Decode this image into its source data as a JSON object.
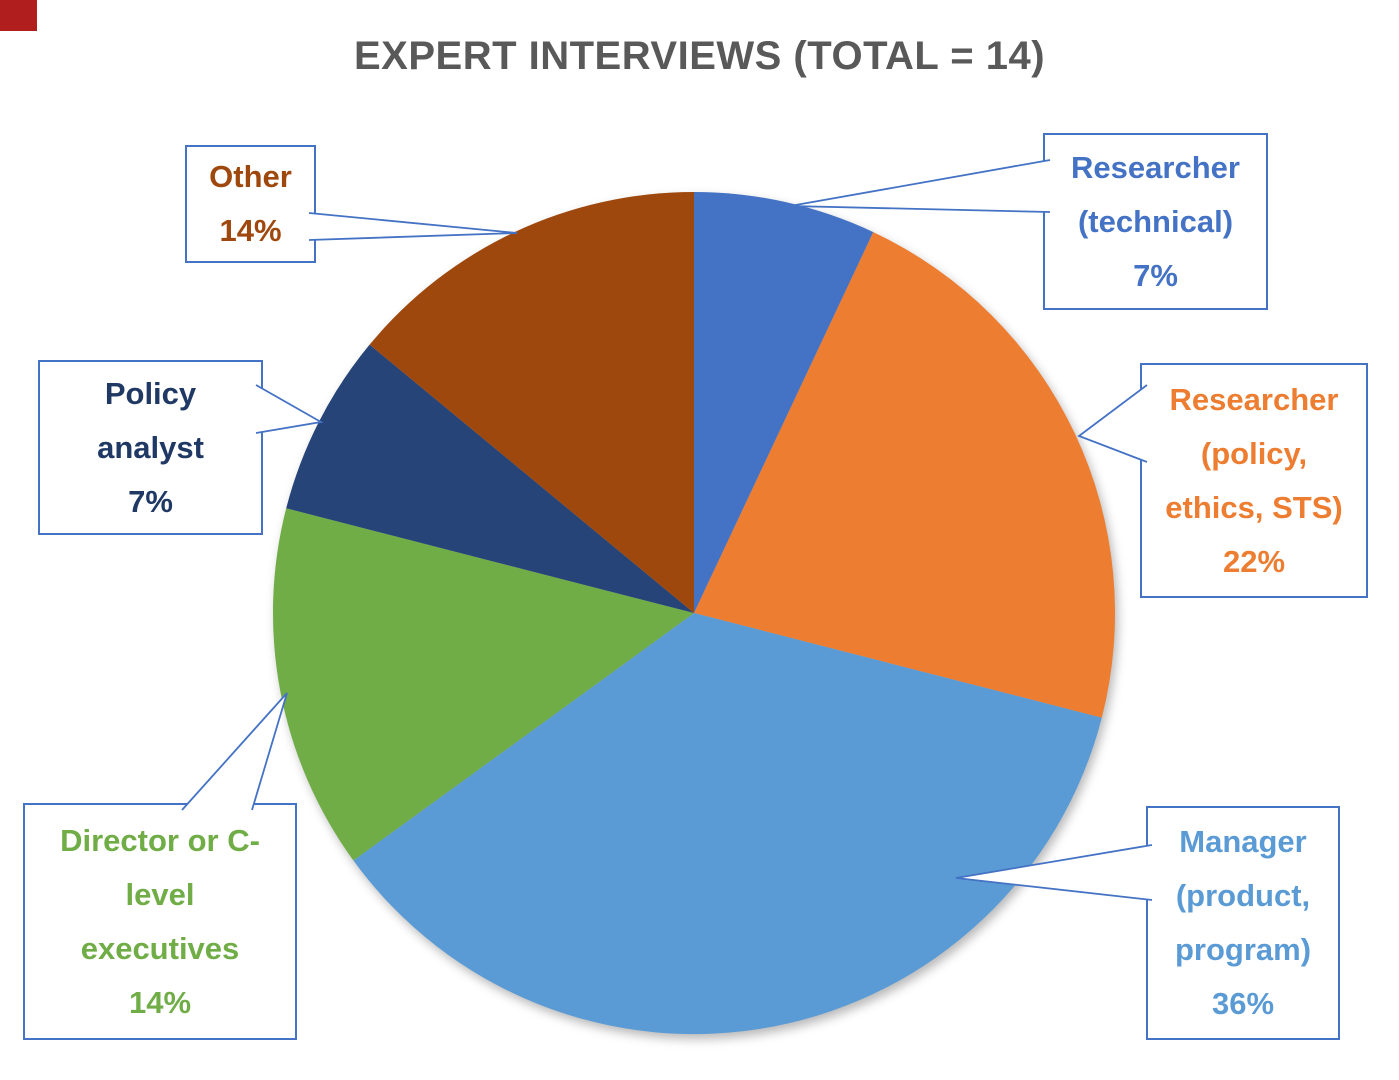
{
  "title": "EXPERT INTERVIEWS (TOTAL = 14)",
  "colors": {
    "title": "#595959",
    "box_border": "#4472C4",
    "leader_line": "#4472C4",
    "background": "#FFFFFF",
    "corner_accent": "#B01E1E"
  },
  "chart_data": {
    "type": "pie",
    "title": "EXPERT INTERVIEWS (TOTAL = 14)",
    "total": 14,
    "start_angle_deg": 0,
    "direction": "clockwise",
    "legend_position": "callout-labels",
    "slices": [
      {
        "id": "researcher-technical",
        "label": "Researcher (technical)",
        "pct": 7,
        "color": "#4472C4",
        "label_color": "#4472C4",
        "label_lines": [
          "Researcher",
          "(technical)",
          "7%"
        ]
      },
      {
        "id": "researcher-policy-ethics-sts",
        "label": "Researcher (policy, ethics, STS)",
        "pct": 22,
        "color": "#ED7D31",
        "label_color": "#ED7D31",
        "label_lines": [
          "Researcher",
          "(policy,",
          "ethics, STS)",
          "22%"
        ]
      },
      {
        "id": "manager-product-program",
        "label": "Manager (product, program)",
        "pct": 36,
        "color": "#5B9BD5",
        "label_color": "#5B9BD5",
        "label_lines": [
          "Manager",
          "(product,",
          "program)",
          "36%"
        ]
      },
      {
        "id": "director-or-c-level-executives",
        "label": "Director or C-level executives",
        "pct": 14,
        "color": "#70AD47",
        "label_color": "#70AD47",
        "label_lines": [
          "Director or C-",
          "level",
          "executives",
          "14%"
        ]
      },
      {
        "id": "policy-analyst",
        "label": "Policy analyst",
        "pct": 7,
        "color": "#264478",
        "label_color": "#1F3864",
        "label_lines": [
          "Policy",
          "analyst",
          "7%"
        ]
      },
      {
        "id": "other",
        "label": "Other",
        "pct": 14,
        "color": "#9E480E",
        "label_color": "#9E480E",
        "label_lines": [
          "Other",
          "14%"
        ]
      }
    ]
  }
}
